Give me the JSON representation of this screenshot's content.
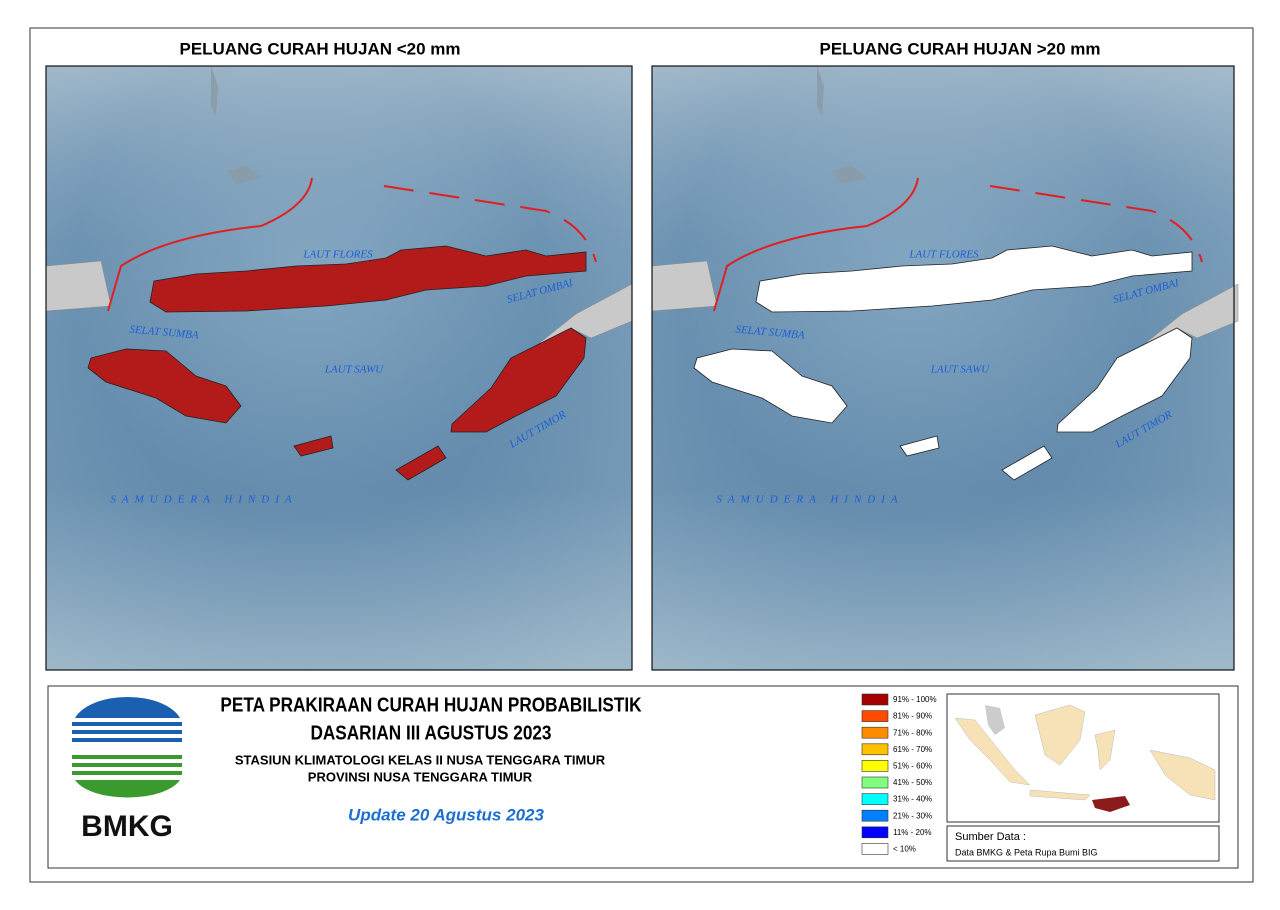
{
  "maps": [
    {
      "title": "PELUANG CURAH HUJAN <20 mm",
      "fill": "#b31b1b",
      "labels": [
        "LAUT FLORES",
        "SELAT OMBAI",
        "SELAT SUMBA",
        "LAUT SAWU",
        "LAUT TIMOR",
        "SAMUDERA HINDIA"
      ]
    },
    {
      "title": "PELUANG CURAH HUJAN >20  mm",
      "fill": "#ffffff",
      "labels": [
        "LAUT FLORES",
        "SELAT OMBAI",
        "SELAT SUMBA",
        "LAUT SAWU",
        "LAUT TIMOR",
        "SAMUDERA HINDIA"
      ]
    }
  ],
  "footer": {
    "logo_text": "BMKG",
    "title_lines": [
      "PETA PRAKIRAAN CURAH HUJAN PROBABILISTIK",
      "DASARIAN III AGUSTUS 2023"
    ],
    "subtitle_lines": [
      "STASIUN KLIMATOLOGI KELAS II NUSA TENGGARA TIMUR",
      "PROVINSI  NUSA TENGGARA TIMUR"
    ],
    "update": "Update 20 Agustus 2023"
  },
  "legend": {
    "items": [
      {
        "label": "91% - 100%",
        "color": "#a50000"
      },
      {
        "label": "81% - 90%",
        "color": "#ff4a00"
      },
      {
        "label": "71% - 80%",
        "color": "#ff8c00"
      },
      {
        "label": "61% - 70%",
        "color": "#ffc000"
      },
      {
        "label": "51% - 60%",
        "color": "#ffff00"
      },
      {
        "label": "41% - 50%",
        "color": "#80ff80"
      },
      {
        "label": "31% - 40%",
        "color": "#00ffff"
      },
      {
        "label": "21% - 30%",
        "color": "#0080ff"
      },
      {
        "label": "11% - 20%",
        "color": "#0000ff"
      },
      {
        "label": "< 10%",
        "color": "#ffffff"
      }
    ]
  },
  "source": {
    "heading": "Sumber Data :",
    "text": "Data BMKG & Peta Rupa Bumi BIG"
  }
}
